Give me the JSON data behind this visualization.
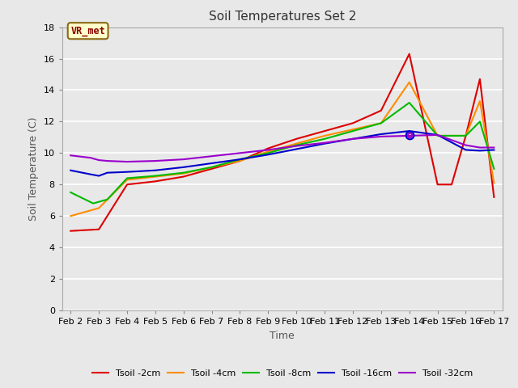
{
  "title": "Soil Temperatures Set 2",
  "xlabel": "Time",
  "ylabel": "Soil Temperature (C)",
  "annotation_text": "VR_met",
  "ylim": [
    0,
    18
  ],
  "xlim": [
    -0.3,
    15.3
  ],
  "fig_facecolor": "#e8e8e8",
  "ax_facecolor": "#e8e8e8",
  "grid_color": "#ffffff",
  "x_labels": [
    "Feb 2",
    "Feb 3",
    "Feb 4",
    "Feb 5",
    "Feb 6",
    "Feb 7",
    "Feb 8",
    "Feb 9",
    "Feb 10",
    "Feb 11",
    "Feb 12",
    "Feb 13",
    "Feb 14",
    "Feb 15",
    "Feb 16",
    "Feb 17"
  ],
  "series": [
    {
      "label": "Tsoil -2cm",
      "color": "#dd0000",
      "linewidth": 1.5,
      "data_x": [
        0,
        0.5,
        1.0,
        2,
        3,
        4,
        5,
        6,
        7,
        8,
        9,
        10,
        11,
        12,
        13,
        13.5,
        14,
        14.5,
        15
      ],
      "data_y": [
        5.05,
        5.1,
        5.15,
        8.0,
        8.2,
        8.5,
        9.0,
        9.5,
        10.3,
        10.9,
        11.4,
        11.9,
        12.7,
        16.3,
        8.0,
        8.0,
        11.1,
        14.7,
        7.2
      ]
    },
    {
      "label": "Tsoil -4cm",
      "color": "#ff8c00",
      "linewidth": 1.5,
      "data_x": [
        0,
        1,
        2,
        3,
        4,
        5,
        6,
        7,
        8,
        9,
        10,
        11,
        12,
        13,
        14,
        14.5,
        15
      ],
      "data_y": [
        6.0,
        6.5,
        8.3,
        8.5,
        8.7,
        9.1,
        9.5,
        10.1,
        10.6,
        11.1,
        11.5,
        11.9,
        14.5,
        11.1,
        11.1,
        13.3,
        8.1
      ]
    },
    {
      "label": "Tsoil -8cm",
      "color": "#00bb00",
      "linewidth": 1.5,
      "data_x": [
        0,
        0.8,
        1.3,
        2,
        3,
        4,
        5,
        6,
        7,
        8,
        9,
        10,
        11,
        12,
        13,
        14,
        14.5,
        15
      ],
      "data_y": [
        7.5,
        6.8,
        7.05,
        8.4,
        8.55,
        8.75,
        9.1,
        9.6,
        10.0,
        10.5,
        10.9,
        11.4,
        11.9,
        13.2,
        11.1,
        11.1,
        12.0,
        9.0
      ]
    },
    {
      "label": "Tsoil -16cm",
      "color": "#0000cc",
      "linewidth": 1.5,
      "data_x": [
        0,
        0.7,
        1.0,
        1.3,
        2,
        3,
        4,
        5,
        6,
        7,
        8,
        9,
        10,
        11,
        12,
        13,
        14,
        14.5,
        15
      ],
      "data_y": [
        8.9,
        8.65,
        8.55,
        8.75,
        8.8,
        8.9,
        9.1,
        9.35,
        9.6,
        9.9,
        10.25,
        10.6,
        10.9,
        11.2,
        11.4,
        11.15,
        10.2,
        10.15,
        10.2
      ]
    },
    {
      "label": "Tsoil -32cm",
      "color": "#9900cc",
      "linewidth": 1.5,
      "data_x": [
        0,
        0.7,
        1.0,
        1.3,
        2,
        3,
        4,
        5,
        6,
        7,
        8,
        9,
        10,
        11,
        12,
        13,
        14,
        14.5,
        15
      ],
      "data_y": [
        9.85,
        9.7,
        9.55,
        9.5,
        9.45,
        9.5,
        9.6,
        9.8,
        10.0,
        10.2,
        10.45,
        10.65,
        10.9,
        11.05,
        11.1,
        11.15,
        10.5,
        10.35,
        10.35
      ]
    }
  ],
  "marker_x": 12,
  "marker_y": 11.15,
  "yticks": [
    0,
    2,
    4,
    6,
    8,
    10,
    12,
    14,
    16,
    18
  ]
}
